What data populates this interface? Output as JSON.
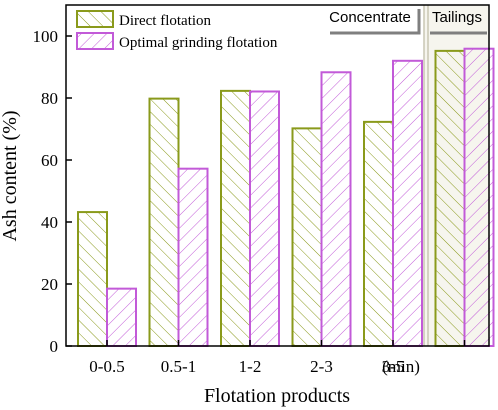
{
  "chart_data": {
    "type": "bar",
    "xlabel": "Flotation products",
    "ylabel": "Ash content (%)",
    "ylim": [
      0,
      110
    ],
    "yticks": [
      0,
      20,
      40,
      60,
      80,
      100
    ],
    "categories": [
      "0-0.5",
      "0.5-1",
      "1-2",
      "2-3",
      "3-5",
      ""
    ],
    "unit_label": "(min)",
    "series": [
      {
        "name": "Direct flotation",
        "values": [
          43.2,
          79.8,
          82.3,
          70.2,
          72.3,
          95.2
        ],
        "color": "#8a9a1b",
        "hatch": "forward"
      },
      {
        "name": "Optimal grinding flotation",
        "values": [
          18.5,
          57.2,
          82.1,
          88.3,
          92.0,
          95.9
        ],
        "color": "#c25ad8",
        "hatch": "backward"
      }
    ],
    "regions": [
      {
        "label": "Concentrate"
      },
      {
        "label": "Tailings"
      }
    ],
    "legend_position": "top-left",
    "grid": false
  }
}
